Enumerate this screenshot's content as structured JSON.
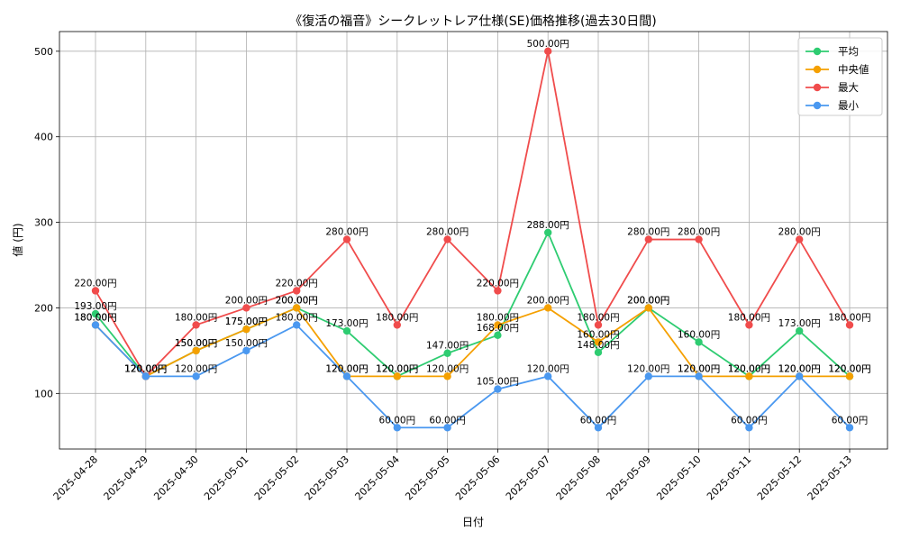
{
  "chart_data": {
    "type": "line",
    "title": "《復活の福音》シークレットレア仕様(SE)価格推移(過去30日間)",
    "xlabel": "日付",
    "ylabel": "値 (円)",
    "ylim": [
      35,
      523
    ],
    "yticks": [
      100,
      200,
      300,
      400,
      500
    ],
    "grid": true,
    "legend_position": "top-right",
    "value_suffix": "円",
    "categories": [
      "2025-04-28",
      "2025-04-29",
      "2025-04-30",
      "2025-05-01",
      "2025-05-02",
      "2025-05-03",
      "2025-05-04",
      "2025-05-05",
      "2025-05-06",
      "2025-05-07",
      "2025-05-08",
      "2025-05-09",
      "2025-05-10",
      "2025-05-11",
      "2025-05-12",
      "2025-05-13"
    ],
    "series": [
      {
        "name": "平均",
        "color": "#2ecc71",
        "values": [
          193,
          120,
          150,
          175,
          200,
          173,
          120,
          147,
          168,
          288,
          148,
          200,
          160,
          120,
          173,
          120
        ]
      },
      {
        "name": "中央値",
        "color": "#f5a000",
        "values": [
          180,
          120,
          150,
          175,
          200,
          120,
          120,
          120,
          180,
          200,
          160,
          200,
          120,
          120,
          120,
          120
        ]
      },
      {
        "name": "最大",
        "color": "#f04c4c",
        "values": [
          220,
          120,
          180,
          200,
          220,
          280,
          180,
          280,
          220,
          500,
          180,
          280,
          280,
          180,
          280,
          180
        ]
      },
      {
        "name": "最小",
        "color": "#4a98f0",
        "values": [
          180,
          120,
          120,
          150,
          180,
          120,
          60,
          60,
          105,
          120,
          60,
          120,
          120,
          60,
          120,
          60
        ]
      }
    ]
  }
}
